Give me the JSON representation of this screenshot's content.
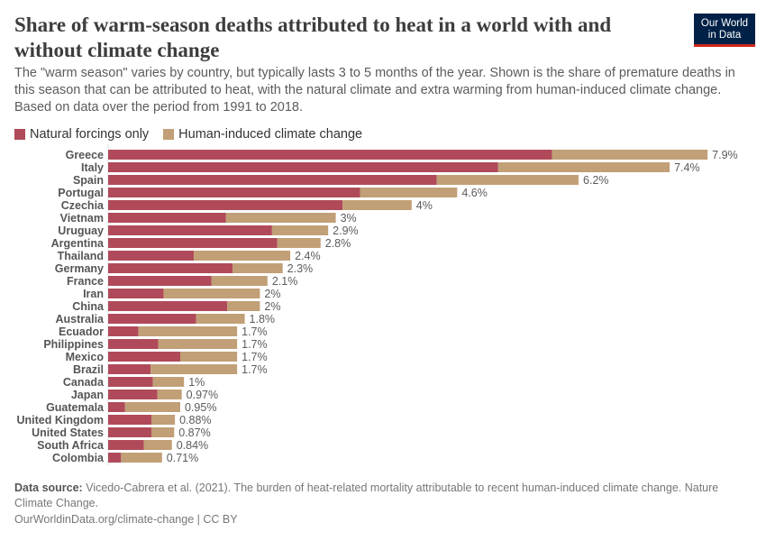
{
  "header": {
    "title": "Share of warm-season deaths attributed to heat in a world with and without climate change",
    "subtitle": "The \"warm season\" varies by country, but typically lasts 3 to 5 months of the year. Shown is the share of premature deaths in this season that can be attributed to heat, with the natural climate and extra warming from human-induced climate change. Based on data over the period from 1991 to 2018.",
    "logo": "Our World in Data"
  },
  "chart_data": {
    "type": "bar",
    "orientation": "horizontal",
    "stacked": true,
    "categories": [
      "Greece",
      "Italy",
      "Spain",
      "Portugal",
      "Czechia",
      "Vietnam",
      "Uruguay",
      "Argentina",
      "Thailand",
      "Germany",
      "France",
      "Iran",
      "China",
      "Australia",
      "Ecuador",
      "Philippines",
      "Mexico",
      "Brazil",
      "Canada",
      "Japan",
      "Guatemala",
      "United Kingdom",
      "United States",
      "South Africa",
      "Colombia"
    ],
    "series": [
      {
        "name": "Natural forcings only",
        "color": "#b04a5a",
        "values": [
          5.85,
          5.14,
          4.33,
          3.32,
          3.09,
          1.55,
          2.16,
          2.23,
          1.13,
          1.64,
          1.36,
          0.73,
          1.57,
          1.16,
          0.4,
          0.66,
          0.95,
          0.56,
          0.59,
          0.65,
          0.22,
          0.57,
          0.57,
          0.47,
          0.17
        ]
      },
      {
        "name": "Human-induced climate change",
        "color": "#c19f77",
        "values": [
          2.05,
          2.26,
          1.87,
          1.28,
          0.91,
          1.45,
          0.74,
          0.57,
          1.27,
          0.66,
          0.74,
          1.27,
          0.43,
          0.64,
          1.3,
          1.04,
          0.75,
          1.14,
          0.41,
          0.32,
          0.73,
          0.31,
          0.3,
          0.37,
          0.54
        ]
      }
    ],
    "total_labels": [
      "7.9%",
      "7.4%",
      "6.2%",
      "4.6%",
      "4%",
      "3%",
      "2.9%",
      "2.8%",
      "2.4%",
      "2.3%",
      "2.1%",
      "2%",
      "2%",
      "1.8%",
      "1.7%",
      "1.7%",
      "1.7%",
      "1.7%",
      "1%",
      "0.97%",
      "0.95%",
      "0.88%",
      "0.87%",
      "0.84%",
      "0.71%"
    ],
    "totals": [
      7.9,
      7.4,
      6.2,
      4.6,
      4,
      3,
      2.9,
      2.8,
      2.4,
      2.3,
      2.1,
      2,
      2,
      1.8,
      1.7,
      1.7,
      1.7,
      1.7,
      1,
      0.97,
      0.95,
      0.88,
      0.87,
      0.84,
      0.71
    ],
    "unit": "%",
    "legend_position": "top-left",
    "grid": false
  },
  "footer": {
    "source_label": "Data source:",
    "source_text": "Vicedo-Cabrera et al. (2021). The burden of heat-related mortality attributable to recent human-induced climate change. Nature Climate Change.",
    "credit": "OurWorldinData.org/climate-change | CC BY"
  }
}
